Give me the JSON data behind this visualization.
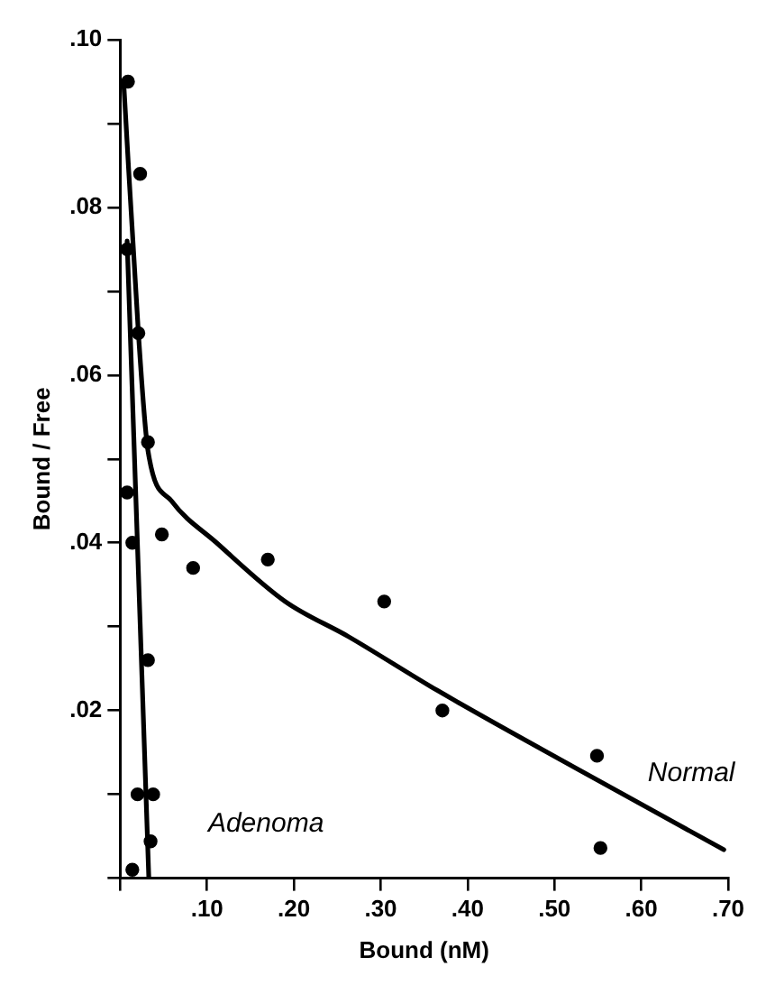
{
  "chart_data": {
    "type": "scatter",
    "xlabel": "Bound (nM)",
    "ylabel": "Bound / Free",
    "xlim": [
      0,
      0.7
    ],
    "ylim": [
      0,
      0.1
    ],
    "xticks": [
      {
        "value": 0,
        "label": null
      },
      {
        "value": 0.1,
        "label": ".10"
      },
      {
        "value": 0.2,
        "label": ".20"
      },
      {
        "value": 0.3,
        "label": ".30"
      },
      {
        "value": 0.4,
        "label": ".40"
      },
      {
        "value": 0.5,
        "label": ".50"
      },
      {
        "value": 0.6,
        "label": ".60"
      },
      {
        "value": 0.7,
        "label": ".70"
      }
    ],
    "yticks": [
      {
        "value": 0,
        "label": null
      },
      {
        "value": 0.01,
        "label": null
      },
      {
        "value": 0.02,
        "label": ".02"
      },
      {
        "value": 0.03,
        "label": null
      },
      {
        "value": 0.04,
        "label": ".04"
      },
      {
        "value": 0.05,
        "label": null
      },
      {
        "value": 0.06,
        "label": ".06"
      },
      {
        "value": 0.07,
        "label": null
      },
      {
        "value": 0.08,
        "label": ".08"
      },
      {
        "value": 0.09,
        "label": null
      },
      {
        "value": 0.1,
        "label": ".10"
      }
    ],
    "grid": false,
    "legend": false,
    "marker": "circle",
    "series": [
      {
        "color": "#000000",
        "x": [
          0.009,
          0.023,
          0.021,
          0.032,
          0.048,
          0.084,
          0.17,
          0.304,
          0.371,
          0.549,
          0.553
        ],
        "values": [
          0.095,
          0.084,
          0.065,
          0.052,
          0.041,
          0.037,
          0.038,
          0.033,
          0.02,
          0.0146,
          0.0036
        ]
      },
      {
        "color": "#000000",
        "x": [
          0.008,
          0.008,
          0.014,
          0.032,
          0.02,
          0.038,
          0.035,
          0.014
        ],
        "values": [
          0.075,
          0.046,
          0.04,
          0.026,
          0.01,
          0.01,
          0.0044,
          0.001
        ]
      },
      {
        "type": "line",
        "color": "#000000",
        "marker": "none",
        "x": [
          0.004,
          0.021,
          0.032,
          0.059,
          0.111,
          0.19,
          0.263,
          0.365,
          0.532,
          0.695
        ],
        "values": [
          0.095,
          0.065,
          0.051,
          0.045,
          0.04,
          0.033,
          0.0288,
          0.0224,
          0.0127,
          0.0034
        ]
      },
      {
        "type": "line",
        "color": "#000000",
        "marker": "none",
        "x": [
          0.008,
          0.033
        ],
        "values": [
          0.076,
          0
        ]
      }
    ],
    "annotations": [
      "Normal",
      "Adenoma"
    ]
  }
}
